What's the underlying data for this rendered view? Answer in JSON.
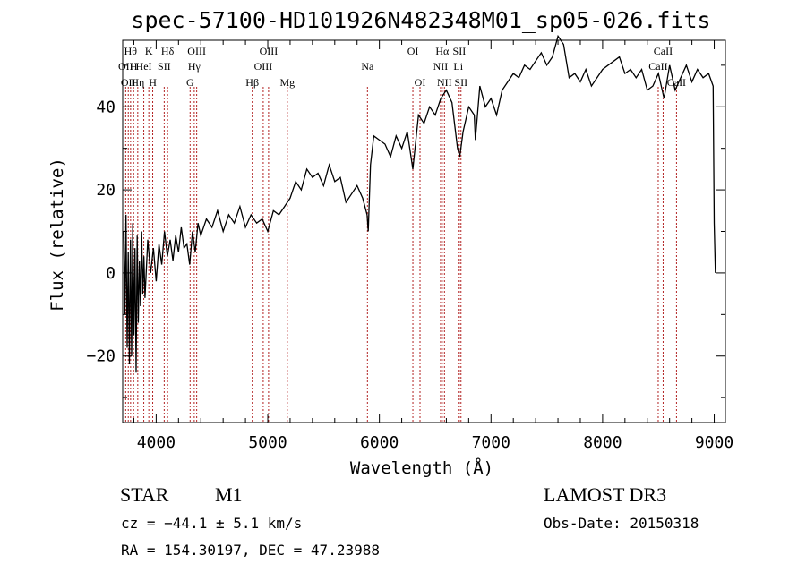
{
  "chart_data": {
    "type": "line",
    "title": "spec-57100-HD101926N482348M01_sp05-026.fits",
    "xlabel": "Wavelength (Å)",
    "ylabel": "Flux (relative)",
    "xlim": [
      3700,
      9100
    ],
    "ylim": [
      -36,
      56
    ],
    "xticks": [
      4000,
      5000,
      6000,
      7000,
      8000,
      9000
    ],
    "yticks": [
      -20,
      0,
      20,
      40
    ],
    "grid": false,
    "series": [
      {
        "x": [
          3710,
          3720,
          3730,
          3740,
          3750,
          3760,
          3770,
          3780,
          3790,
          3800,
          3810,
          3820,
          3830,
          3840,
          3850,
          3860,
          3870,
          3880,
          3890,
          3900,
          3925,
          3950,
          3975,
          4000,
          4025,
          4050,
          4075,
          4100,
          4125,
          4150,
          4175,
          4200,
          4225,
          4250,
          4275,
          4300,
          4325,
          4350,
          4375,
          4400,
          4450,
          4500,
          4550,
          4600,
          4650,
          4700,
          4750,
          4800,
          4850,
          4900,
          4950,
          5000,
          5050,
          5100,
          5150,
          5200,
          5250,
          5300,
          5350,
          5400,
          5450,
          5500,
          5550,
          5600,
          5650,
          5700,
          5750,
          5800,
          5850,
          5890,
          5900,
          5920,
          5950,
          6000,
          6050,
          6100,
          6150,
          6200,
          6250,
          6300,
          6350,
          6400,
          6450,
          6500,
          6550,
          6600,
          6650,
          6700,
          6720,
          6750,
          6800,
          6850,
          6860,
          6900,
          6950,
          7000,
          7050,
          7100,
          7150,
          7200,
          7250,
          7300,
          7350,
          7400,
          7450,
          7500,
          7550,
          7600,
          7650,
          7700,
          7750,
          7800,
          7850,
          7900,
          7950,
          8000,
          8050,
          8100,
          8150,
          8200,
          8250,
          8300,
          8350,
          8400,
          8450,
          8500,
          8550,
          8600,
          8650,
          8700,
          8750,
          8800,
          8850,
          8900,
          8950,
          8990,
          9000,
          9010
        ],
        "y": [
          10,
          -10,
          14,
          -18,
          5,
          -22,
          8,
          -20,
          12,
          -15,
          6,
          -24,
          9,
          -12,
          3,
          -8,
          10,
          -5,
          4,
          -6,
          8,
          0,
          6,
          -2,
          7,
          2,
          10,
          4,
          8,
          3,
          9,
          5,
          11,
          6,
          7,
          2,
          10,
          5,
          12,
          9,
          13,
          11,
          15,
          10,
          14,
          12,
          16,
          11,
          14,
          12,
          13,
          10,
          15,
          14,
          16,
          18,
          22,
          20,
          25,
          23,
          24,
          21,
          26,
          22,
          23,
          17,
          19,
          21,
          18,
          14,
          10,
          26,
          33,
          32,
          31,
          28,
          33,
          30,
          34,
          25,
          38,
          36,
          40,
          38,
          42,
          44,
          41,
          30,
          28,
          34,
          40,
          38,
          32,
          45,
          40,
          42,
          38,
          44,
          46,
          48,
          47,
          50,
          49,
          51,
          53,
          50,
          52,
          57,
          55,
          47,
          48,
          46,
          49,
          45,
          47,
          49,
          50,
          51,
          52,
          48,
          49,
          47,
          49,
          44,
          45,
          48,
          42,
          50,
          44,
          47,
          50,
          46,
          49,
          47,
          48,
          45,
          12,
          0
        ],
        "color": "#000000"
      }
    ],
    "line_markers": [
      {
        "x": 3727,
        "rows": [
          {
            "text": "OII",
            "row": 1
          }
        ]
      },
      {
        "x": 3750,
        "rows": [
          {
            "text": "OII",
            "row": 2
          }
        ]
      },
      {
        "x": 3771,
        "rows": [
          {
            "text": "Hθ",
            "row": 0
          }
        ]
      },
      {
        "x": 3798,
        "rows": [
          {
            "text": "H",
            "row": 1
          }
        ]
      },
      {
        "x": 3835,
        "rows": [
          {
            "text": "Hη",
            "row": 2
          }
        ]
      },
      {
        "x": 3889,
        "rows": [
          {
            "text": "HeI",
            "row": 1
          }
        ]
      },
      {
        "x": 3934,
        "rows": [
          {
            "text": "K",
            "row": 0
          }
        ]
      },
      {
        "x": 3969,
        "rows": [
          {
            "text": "H",
            "row": 2
          }
        ]
      },
      {
        "x": 4072,
        "rows": [
          {
            "text": "SII",
            "row": 1
          }
        ]
      },
      {
        "x": 4102,
        "rows": [
          {
            "text": "Hδ",
            "row": 0
          }
        ]
      },
      {
        "x": 4304,
        "rows": [
          {
            "text": "G",
            "row": 2
          }
        ]
      },
      {
        "x": 4341,
        "rows": [
          {
            "text": "Hγ",
            "row": 1
          }
        ]
      },
      {
        "x": 4363,
        "rows": [
          {
            "text": "OIII",
            "row": 0
          }
        ]
      },
      {
        "x": 4861,
        "rows": [
          {
            "text": "Hβ",
            "row": 2
          }
        ]
      },
      {
        "x": 4959,
        "rows": [
          {
            "text": "OIII",
            "row": 1
          }
        ]
      },
      {
        "x": 5007,
        "rows": [
          {
            "text": "OIII",
            "row": 0
          }
        ]
      },
      {
        "x": 5175,
        "rows": [
          {
            "text": "Mg",
            "row": 2
          }
        ]
      },
      {
        "x": 5893,
        "rows": [
          {
            "text": "Na",
            "row": 1
          }
        ]
      },
      {
        "x": 6300,
        "rows": [
          {
            "text": "OI",
            "row": 0
          }
        ]
      },
      {
        "x": 6364,
        "rows": [
          {
            "text": "OI",
            "row": 2
          }
        ]
      },
      {
        "x": 6548,
        "rows": [
          {
            "text": "NII",
            "row": 1
          }
        ]
      },
      {
        "x": 6563,
        "rows": [
          {
            "text": "Hα",
            "row": 0
          }
        ]
      },
      {
        "x": 6583,
        "rows": [
          {
            "text": "NII",
            "row": 2
          }
        ]
      },
      {
        "x": 6707,
        "rows": [
          {
            "text": "Li",
            "row": 1
          }
        ]
      },
      {
        "x": 6716,
        "rows": [
          {
            "text": "SII",
            "row": 0
          }
        ]
      },
      {
        "x": 6731,
        "rows": [
          {
            "text": "SII",
            "row": 2
          }
        ]
      },
      {
        "x": 8498,
        "rows": [
          {
            "text": "CaII",
            "row": 1
          }
        ]
      },
      {
        "x": 8542,
        "rows": [
          {
            "text": "CaII",
            "row": 0
          }
        ]
      },
      {
        "x": 8662,
        "rows": [
          {
            "text": "CaII",
            "row": 2
          }
        ]
      }
    ],
    "marker_color": "#b22222"
  },
  "info": {
    "object_class": "STAR",
    "subclass": "M1",
    "survey": "LAMOST DR3",
    "cz": "cz = −44.1 ± 5.1 km/s",
    "obs_date": "Obs-Date: 20150318",
    "coords": "RA = 154.30197, DEC =  47.23988"
  }
}
